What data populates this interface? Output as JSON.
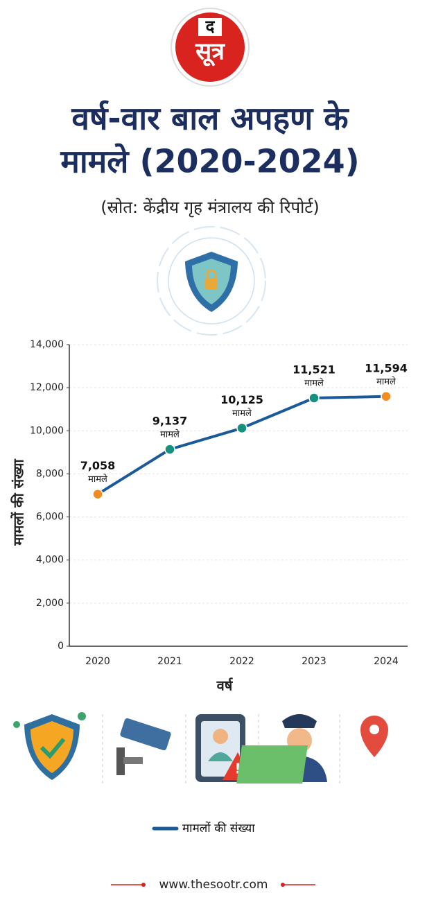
{
  "brand": {
    "logo_top": "द",
    "logo_bottom": "सूत्र"
  },
  "chart_data": {
    "type": "line",
    "title": [
      "वर्ष-वार बाल अपहण के",
      "मामले (2020-2024)"
    ],
    "subtitle": "(स्रोत: केंद्रीय गृह मंत्रालय की रिपोर्ट)",
    "categories": [
      "2020",
      "2021",
      "2022",
      "2023",
      "2024"
    ],
    "series": [
      {
        "name": "मामलों की संख्या",
        "color": "#1b5a9a",
        "values": [
          7058,
          9137,
          10125,
          11521,
          11594
        ],
        "value_labels": [
          "7,058",
          "9,137",
          "10,125",
          "11,521",
          "11,594"
        ],
        "point_colors": [
          "#f28c1e",
          "#17907f",
          "#17907f",
          "#17907f",
          "#f28c1e"
        ]
      }
    ],
    "unit_label": "मामले",
    "x_label": "वर्ष",
    "y_label": "मामलों की संख्या",
    "ylim": [
      0,
      14000
    ],
    "yticks": [
      0,
      {
        "value": 2000,
        "label": "2,000"
      },
      {
        "value": 4000,
        "label": "4,000"
      },
      {
        "value": 6000,
        "label": "6,000"
      },
      {
        "value": 8000,
        "label": "8,000"
      },
      {
        "value": 10000,
        "label": "10,000"
      },
      {
        "value": 12000,
        "label": "12,000"
      },
      {
        "value": 14000,
        "label": "14,000"
      }
    ],
    "grid": true
  },
  "footer": {
    "url": "www.thesootr.com"
  }
}
